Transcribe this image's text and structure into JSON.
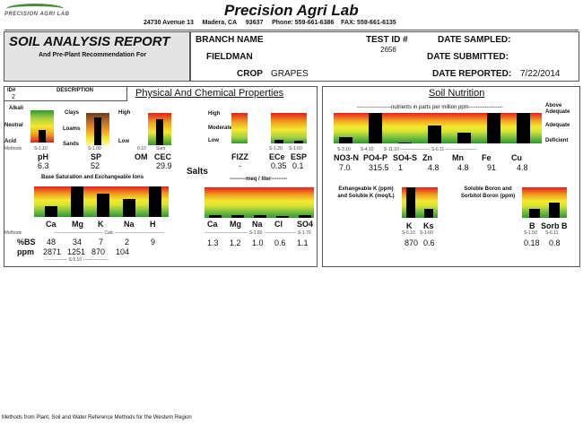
{
  "header": {
    "logo_text": "PRECISION AGRI LAB",
    "company": "Precision Agri Lab",
    "address": "24730 Avenue 13",
    "city": "Madera, CA",
    "zip": "93637",
    "phone": "Phone: 559-661-6386",
    "fax": "FAX: 559-661-6135"
  },
  "report": {
    "title": "SOIL ANALYSIS REPORT",
    "subtitle": "And Pre-Plant Recommendation For",
    "branch_label": "BRANCH NAME",
    "fieldman_label": "FIELDMAN",
    "crop_label": "CROP",
    "crop_value": "GRAPES",
    "test_id_label": "TEST ID #",
    "test_id_value": "2656",
    "date_sampled_label": "DATE SAMPLED:",
    "date_submitted_label": "DATE SUBMITTED:",
    "date_reported_label": "DATE REPORTED:",
    "date_reported_value": "7/22/2014"
  },
  "sample": {
    "id_label": "ID#",
    "desc_label": "DESCRIPTION",
    "id_value": "2"
  },
  "physical": {
    "section_title": "Physical And Chemical Properties",
    "ph_labels": [
      "Alkali",
      "Neutral",
      "Acid"
    ],
    "texture_labels": [
      "Clays",
      "Loams",
      "Sands"
    ],
    "high_label": "High",
    "low_label": "Low",
    "methods_label": "Methods",
    "method_codes": [
      "S-1.10",
      "S-1.00",
      "9.10",
      "Sum"
    ],
    "headers": [
      "pH",
      "SP",
      "OM",
      "CEC"
    ],
    "values": [
      "6.3",
      "52",
      "",
      "29.9"
    ],
    "salts_label": "Salts",
    "salts_scale": [
      "High",
      "Moderate",
      "Low"
    ],
    "salts_methods": [
      "S-1.20",
      "S-1.60"
    ],
    "salts_headers": [
      "FIZZ",
      "ECe",
      "ESP"
    ],
    "salts_values": [
      "-",
      "0.35",
      "0.1"
    ],
    "base_sat_title": "Base Saturation and Exchangeable Ions",
    "cations": [
      "Ca",
      "Mg",
      "K",
      "Na",
      "H"
    ],
    "cations_method": "Calc",
    "pct_bs_label": "%BS",
    "ppm_label": "ppm",
    "pct_bs": [
      "48",
      "34",
      "7",
      "2",
      "9"
    ],
    "ppm": [
      "2871",
      "1251",
      "870",
      "104"
    ],
    "ppm_method": "S-5.10",
    "meq_title": "---------meq / liter---------",
    "salt_ions": [
      "Ca",
      "Mg",
      "Na",
      "Cl",
      "SO4"
    ],
    "salt_ion_methods": [
      "S-1.60",
      "S-1.70"
    ],
    "salt_ion_values": [
      "1.3",
      "1.2",
      "1.0",
      "0.6",
      "1.1"
    ]
  },
  "nutrition": {
    "section_title": "Soil Nutrition",
    "ppm_title": "-------------------nutrients in parts per million ppm-------------------",
    "scale": [
      "Above Adequate",
      "Adequate",
      "Deficient"
    ],
    "method_codes": [
      "S-3.10",
      "S-4.10",
      "S-11.10",
      "S-6.11"
    ],
    "headers": [
      "NO3-N",
      "PO4-P",
      "SO4-S",
      "Zn",
      "Mn",
      "Fe",
      "Cu"
    ],
    "values": [
      "7.0",
      "315.5",
      "1",
      "4.8",
      "4.8",
      "91",
      "4.8"
    ],
    "exk_title": "Exhangeable K (ppm) and Soluble K (meq/L)",
    "exk_headers": [
      "K",
      "Ks"
    ],
    "exk_methods": [
      "S-5.10",
      "S-1.60"
    ],
    "exk_values": [
      "870",
      "0.6"
    ],
    "boron_title": "Soluble Boron and Sorbitol Boron (ppm)",
    "boron_headers": [
      "B",
      "Sorb B"
    ],
    "boron_methods": [
      "S-1.50",
      "S-6.11"
    ],
    "boron_values": [
      "0.18",
      "0.8"
    ]
  },
  "footer": {
    "methods_note": "Methods from Plant, Soil and Water Reference Methods for the Western Region"
  },
  "bars": {
    "ph": 0.4,
    "sp": 0.85,
    "om": 0,
    "cec": 0.8,
    "fizz": 0,
    "ece": 0.12,
    "cations": [
      0.35,
      1.0,
      0.75,
      0.6,
      1.0
    ],
    "salt_ions": [
      0.1,
      0.09,
      0.08,
      0.06,
      0.09
    ],
    "nutrients": [
      0.2,
      1.0,
      0.03,
      0.6,
      0.35,
      1.0,
      1.0
    ],
    "exk": [
      1.0,
      0.3
    ],
    "boron": [
      0.3,
      0.5
    ]
  }
}
